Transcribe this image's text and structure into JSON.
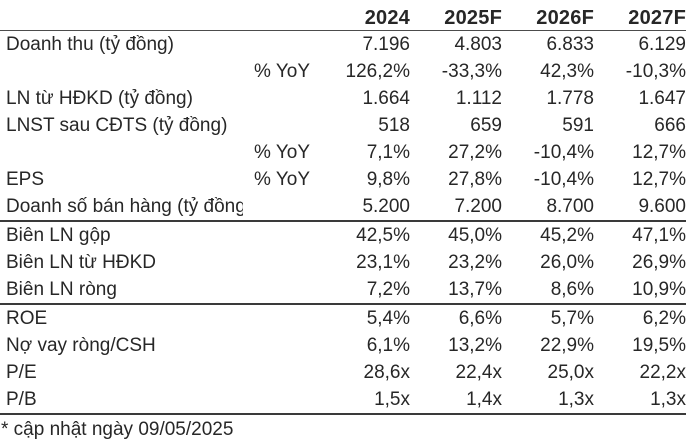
{
  "chart_data": {
    "type": "table",
    "title": "",
    "columns": [
      "2024",
      "2025F",
      "2026F",
      "2027F"
    ],
    "sections": [
      {
        "rows": [
          {
            "label": "Doanh thu (tỷ đồng)",
            "sublabel": "",
            "values": [
              "7.196",
              "4.803",
              "6.833",
              "6.129"
            ]
          },
          {
            "label": "",
            "sublabel": "% YoY",
            "values": [
              "126,2%",
              "-33,3%",
              "42,3%",
              "-10,3%"
            ]
          },
          {
            "label": "LN từ HĐKD (tỷ đồng)",
            "sublabel": "",
            "values": [
              "1.664",
              "1.112",
              "1.778",
              "1.647"
            ]
          },
          {
            "label": "LNST sau CĐTS (tỷ đồng)",
            "sublabel": "",
            "values": [
              "518",
              "659",
              "591",
              "666"
            ]
          },
          {
            "label": "",
            "sublabel": "% YoY",
            "values": [
              "7,1%",
              "27,2%",
              "-10,4%",
              "12,7%"
            ]
          },
          {
            "label": "EPS",
            "sublabel": "% YoY",
            "values": [
              "9,8%",
              "27,8%",
              "-10,4%",
              "12,7%"
            ]
          },
          {
            "label": "Doanh số bán hàng (tỷ đồng)",
            "sublabel": "",
            "values": [
              "5.200",
              "7.200",
              "8.700",
              "9.600"
            ]
          }
        ]
      },
      {
        "rows": [
          {
            "label": "Biên LN gộp",
            "sublabel": "",
            "values": [
              "42,5%",
              "45,0%",
              "45,2%",
              "47,1%"
            ]
          },
          {
            "label": "Biên LN từ HĐKD",
            "sublabel": "",
            "values": [
              "23,1%",
              "23,2%",
              "26,0%",
              "26,9%"
            ]
          },
          {
            "label": "Biên LN ròng",
            "sublabel": "",
            "values": [
              "7,2%",
              "13,7%",
              "8,6%",
              "10,9%"
            ]
          }
        ]
      },
      {
        "rows": [
          {
            "label": "ROE",
            "sublabel": "",
            "values": [
              "5,4%",
              "6,6%",
              "5,7%",
              "6,2%"
            ]
          },
          {
            "label": "Nợ vay ròng/CSH",
            "sublabel": "",
            "values": [
              "6,1%",
              "13,2%",
              "22,9%",
              "19,5%"
            ]
          },
          {
            "label": "P/E",
            "sublabel": "",
            "values": [
              "28,6x",
              "22,4x",
              "25,0x",
              "22,2x"
            ]
          },
          {
            "label": "P/B",
            "sublabel": "",
            "values": [
              "1,5x",
              "1,4x",
              "1,3x",
              "1,3x"
            ]
          }
        ]
      }
    ],
    "footnote": "* cập nhật ngày 09/05/2025"
  },
  "colors": {
    "text": "#272727",
    "line_strong": "#3a3a3a",
    "line_light": "#4c4c4c",
    "background": "#ffffff"
  }
}
